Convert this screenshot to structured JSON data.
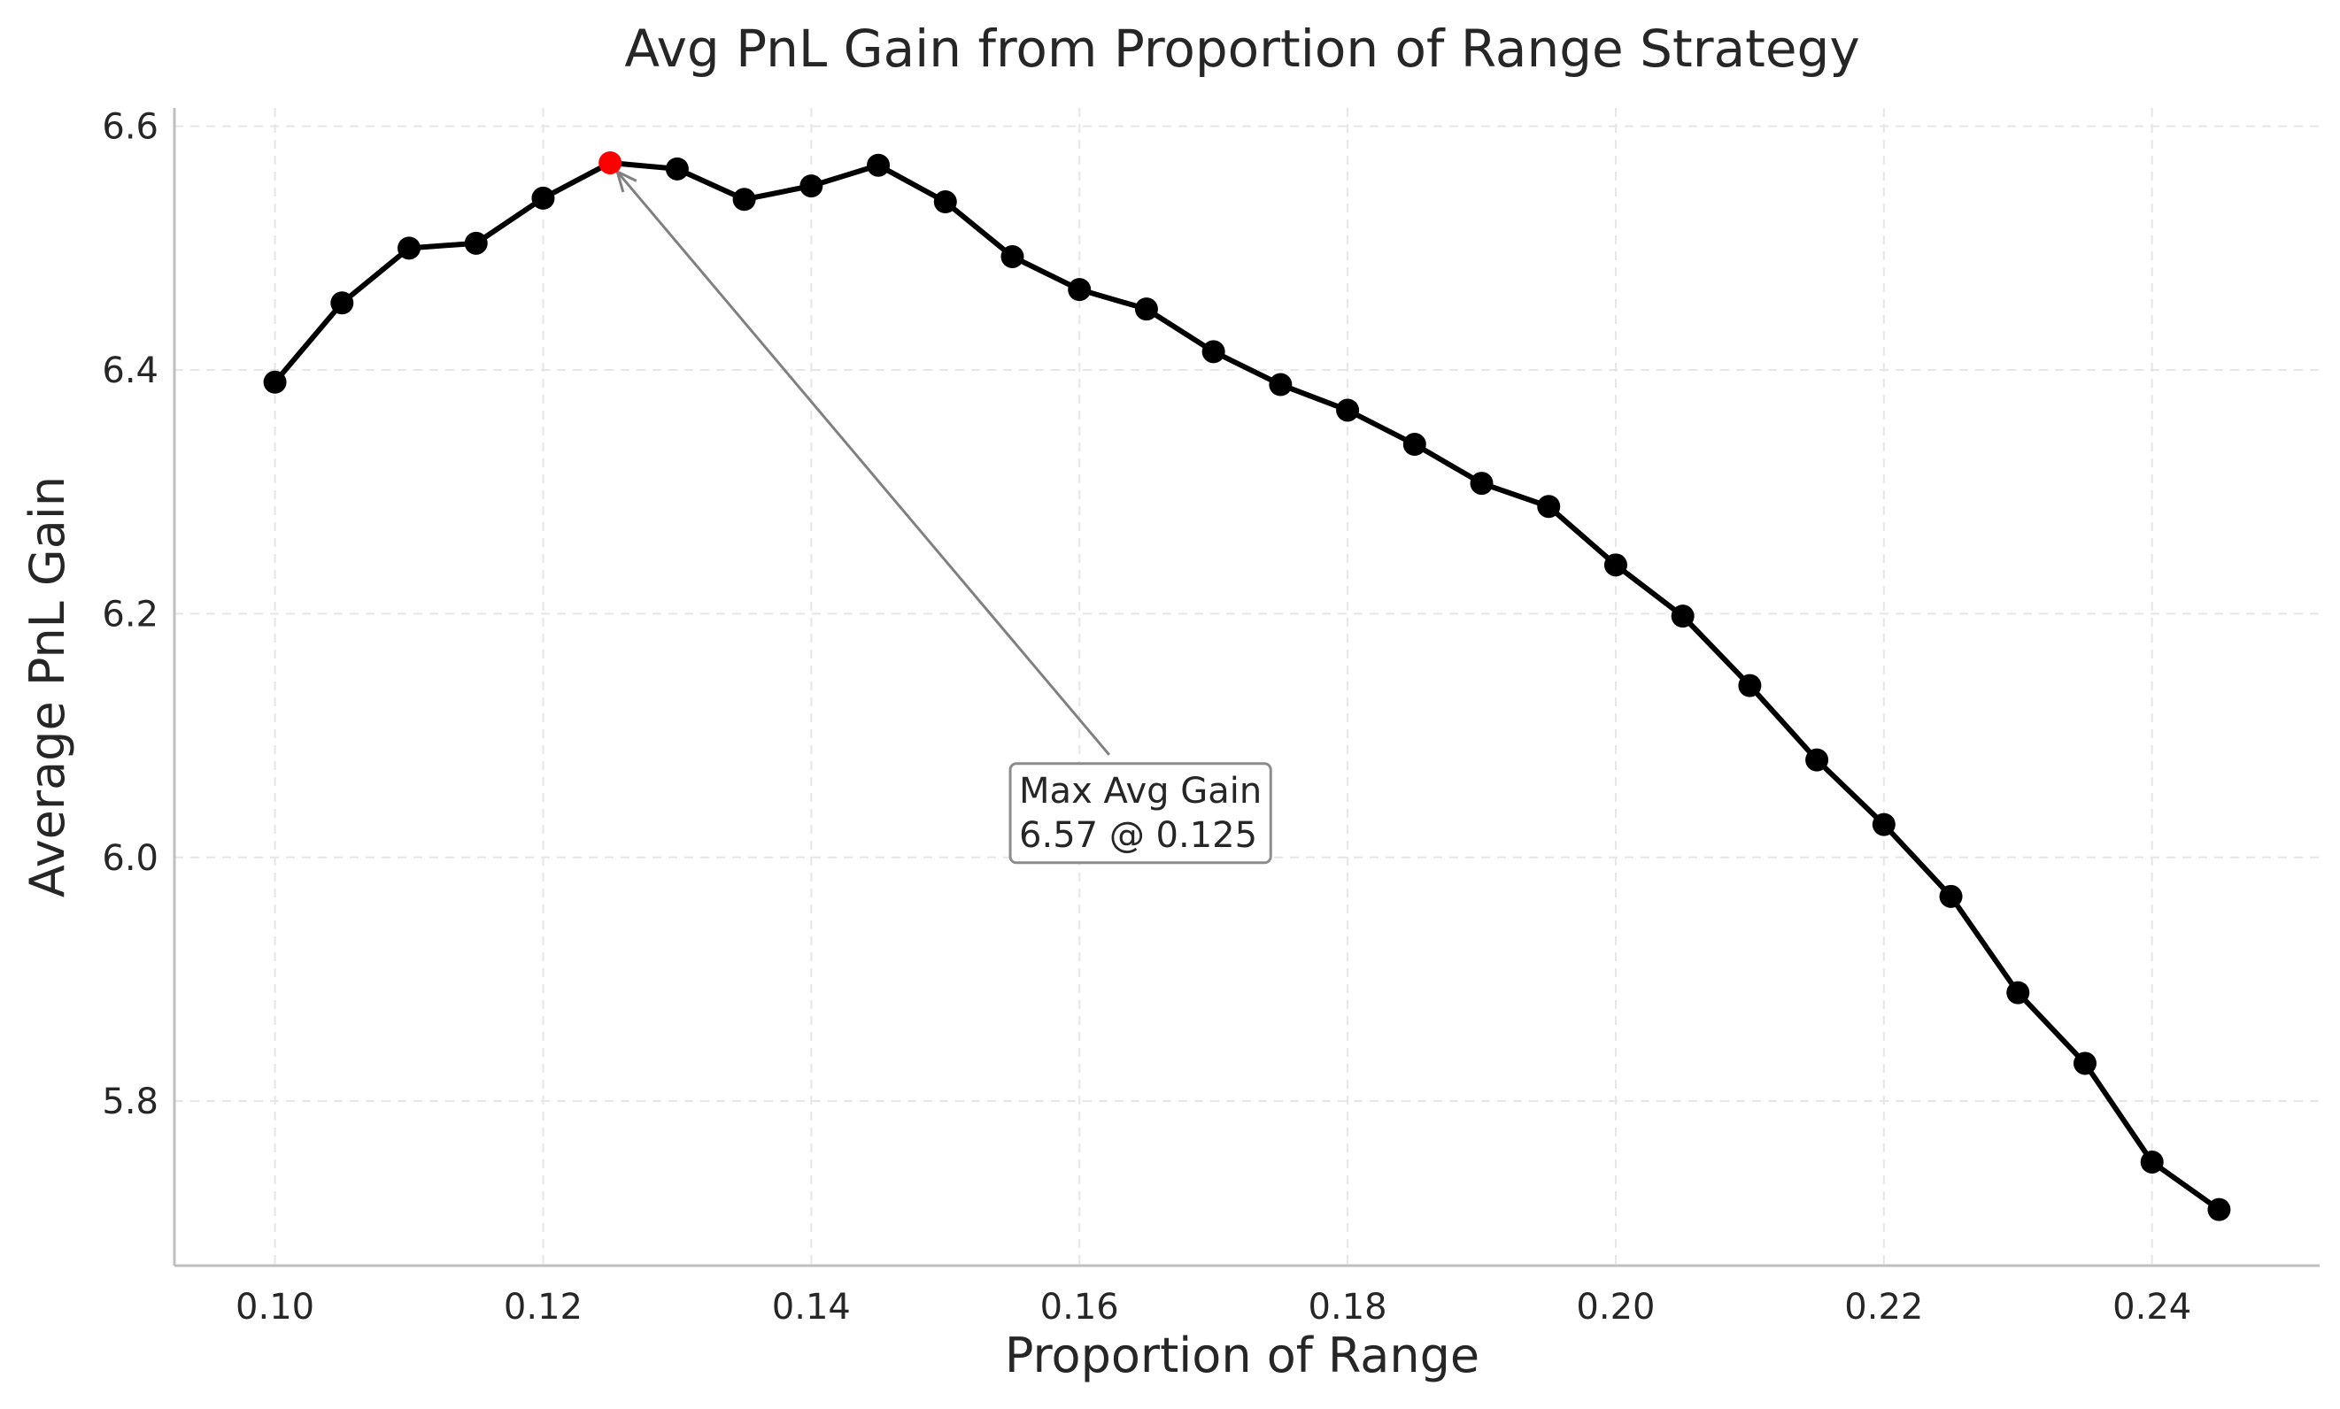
{
  "chart_data": {
    "type": "line",
    "title": "Avg PnL Gain from Proportion of Range Strategy",
    "xlabel": "Proportion of Range",
    "ylabel": "Average PnL Gain",
    "xlim": [
      0.0925,
      0.2525
    ],
    "ylim": [
      5.665,
      6.615
    ],
    "x_ticks": [
      0.1,
      0.12,
      0.14,
      0.16,
      0.18,
      0.2,
      0.22,
      0.24
    ],
    "x_tick_labels": [
      "0.10",
      "0.12",
      "0.14",
      "0.16",
      "0.18",
      "0.20",
      "0.22",
      "0.24"
    ],
    "y_ticks": [
      5.8,
      6.0,
      6.2,
      6.4,
      6.6
    ],
    "y_tick_labels": [
      "5.8",
      "6.0",
      "6.2",
      "6.4",
      "6.6"
    ],
    "grid": true,
    "line_color": "#000000",
    "highlight_color": "#ff0000",
    "series": [
      {
        "x": [
          0.1,
          0.105,
          0.11,
          0.115,
          0.12,
          0.125,
          0.13,
          0.135,
          0.14,
          0.145,
          0.15,
          0.155,
          0.16,
          0.165,
          0.17,
          0.175,
          0.18,
          0.185,
          0.19,
          0.195,
          0.2,
          0.205,
          0.21,
          0.215,
          0.22,
          0.225,
          0.23,
          0.235,
          0.24,
          0.245
        ],
        "y": [
          6.39,
          6.455,
          6.5,
          6.504,
          6.541,
          6.57,
          6.565,
          6.54,
          6.551,
          6.568,
          6.538,
          6.493,
          6.466,
          6.45,
          6.415,
          6.388,
          6.367,
          6.339,
          6.307,
          6.288,
          6.24,
          6.198,
          6.141,
          6.08,
          6.027,
          5.968,
          5.889,
          5.831,
          5.75,
          5.711
        ]
      }
    ],
    "highlight_point": {
      "x": 0.125,
      "y": 6.57
    },
    "annotation": {
      "line1": "Max Avg Gain",
      "line2": "6.57 @ 0.125",
      "text_x": 0.1555,
      "text_y": 6.045
    }
  }
}
